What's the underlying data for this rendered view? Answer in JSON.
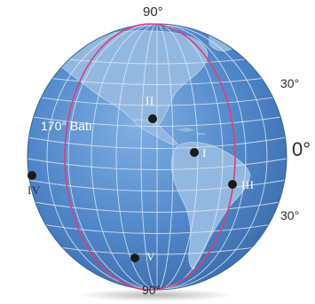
{
  "latitude_labels": {
    "north_pole": "90°",
    "south_pole": "90°",
    "lat_30_north": "30°",
    "equator": "0°",
    "lat_30_south": "30°"
  },
  "meridian_label": "170° Batı",
  "points": [
    {
      "id": "I",
      "label": "I"
    },
    {
      "id": "II",
      "label": "II"
    },
    {
      "id": "III",
      "label": "III"
    },
    {
      "id": "IV",
      "label": "IV"
    },
    {
      "id": "V",
      "label": "V"
    }
  ],
  "colors": {
    "ocean": "#4f86c8",
    "land": "#8fb3dc",
    "grid": "#dfe9f5",
    "meridian": "#d9407a",
    "point": "#1a1a1a"
  }
}
